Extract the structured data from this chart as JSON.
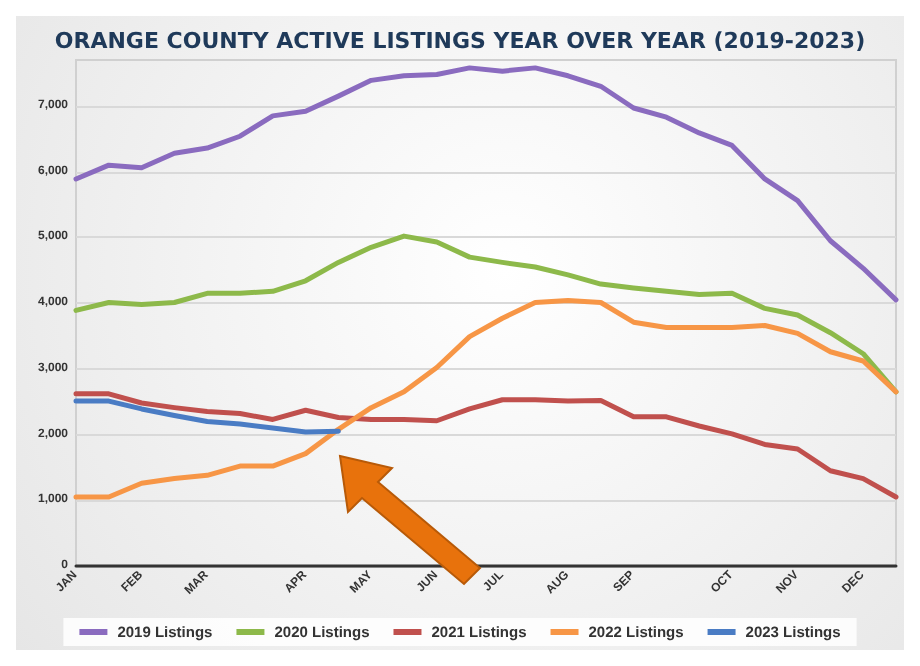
{
  "chart_data": {
    "type": "line",
    "title": "ORANGE COUNTY ACTIVE LISTINGS YEAR OVER YEAR (2019-2023)",
    "categories": [
      "JAN",
      null,
      "FEB",
      null,
      "MAR",
      null,
      null,
      "APR",
      null,
      "MAY",
      null,
      "JUN",
      null,
      "JUL",
      null,
      "AUG",
      null,
      "SEP",
      null,
      null,
      "OCT",
      null,
      "NOV",
      null,
      "DEC",
      null
    ],
    "ylim": [
      0,
      7700
    ],
    "yticks": [
      0,
      {
        "value": 1000,
        "label": "1,000"
      },
      {
        "value": 2000,
        "label": "2,000"
      },
      {
        "value": 3000,
        "label": "3,000"
      },
      {
        "value": 4000,
        "label": "4,000"
      },
      {
        "value": 5000,
        "label": "5,000"
      },
      {
        "value": 6000,
        "label": "6,000"
      },
      {
        "value": 7000,
        "label": "7,000"
      }
    ],
    "grid": "y",
    "legend": "bottom",
    "marker": "none",
    "line_style": "solid",
    "series": [
      {
        "name": "2019 Listings",
        "color": "#8a6bbf",
        "values": [
          5890,
          6100,
          6060,
          6280,
          6360,
          6540,
          6850,
          6920,
          7150,
          7390,
          7460,
          7480,
          7580,
          7530,
          7580,
          7460,
          7300,
          6970,
          6830,
          6590,
          6400,
          5890,
          5560,
          4950,
          4530,
          4050
        ]
      },
      {
        "name": "2020 Listings",
        "color": "#8db94a",
        "values": [
          3890,
          4010,
          3980,
          4010,
          4150,
          4150,
          4180,
          4340,
          4620,
          4850,
          5020,
          4930,
          4700,
          4620,
          4550,
          4430,
          4290,
          4230,
          4180,
          4130,
          4150,
          3920,
          3820,
          3550,
          3230,
          2650
        ]
      },
      {
        "name": "2021 Listings",
        "color": "#c0504d",
        "values": [
          2620,
          2620,
          2480,
          2410,
          2350,
          2320,
          2230,
          2370,
          2260,
          2230,
          2230,
          2210,
          2390,
          2530,
          2530,
          2510,
          2520,
          2270,
          2270,
          2130,
          2010,
          1850,
          1780,
          1450,
          1330,
          1050
        ]
      },
      {
        "name": "2022 Listings",
        "color": "#f79646",
        "values": [
          1050,
          1050,
          1260,
          1330,
          1380,
          1520,
          1520,
          1710,
          2080,
          2410,
          2650,
          3020,
          3490,
          3770,
          4010,
          4040,
          4010,
          3710,
          3630,
          3630,
          3630,
          3660,
          3540,
          3260,
          3120,
          2650
        ]
      },
      {
        "name": "2023 Listings",
        "color": "#4a7cc4",
        "values": [
          2510,
          2510,
          2390,
          2290,
          2200,
          2160,
          2100,
          2040,
          2050,
          null,
          null,
          null,
          null,
          null,
          null,
          null,
          null,
          null,
          null,
          null,
          null,
          null,
          null,
          null,
          null,
          null
        ]
      }
    ]
  }
}
